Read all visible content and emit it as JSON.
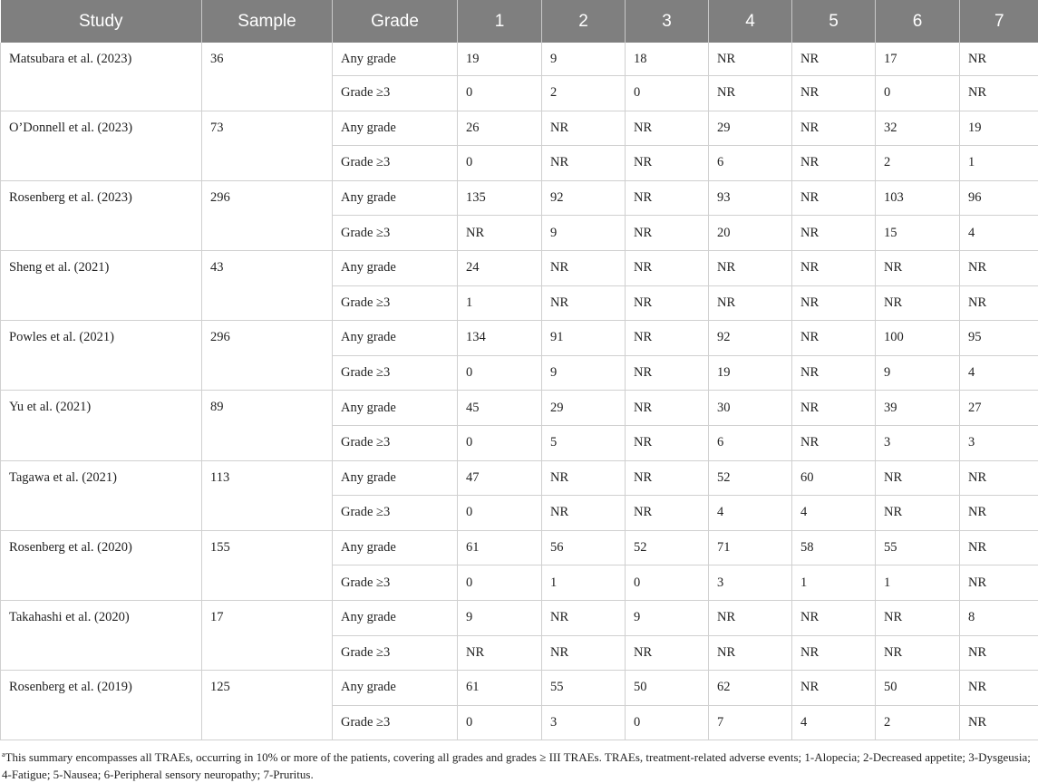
{
  "table": {
    "headers": [
      "Study",
      "Sample",
      "Grade",
      "1",
      "2",
      "3",
      "4",
      "5",
      "6",
      "7"
    ],
    "studies": [
      {
        "name": "Matsubara et al. (2023)",
        "sample": "36",
        "rows": [
          {
            "grade": "Any grade",
            "values": [
              "19",
              "9",
              "18",
              "NR",
              "NR",
              "17",
              "NR"
            ]
          },
          {
            "grade": "Grade ≥3",
            "values": [
              "0",
              "2",
              "0",
              "NR",
              "NR",
              "0",
              "NR"
            ]
          }
        ]
      },
      {
        "name": "O’Donnell et al. (2023)",
        "sample": "73",
        "rows": [
          {
            "grade": "Any grade",
            "values": [
              "26",
              "NR",
              "NR",
              "29",
              "NR",
              "32",
              "19"
            ]
          },
          {
            "grade": "Grade ≥3",
            "values": [
              "0",
              "NR",
              "NR",
              "6",
              "NR",
              "2",
              "1"
            ]
          }
        ]
      },
      {
        "name": "Rosenberg et al. (2023)",
        "sample": "296",
        "rows": [
          {
            "grade": "Any grade",
            "values": [
              "135",
              "92",
              "NR",
              "93",
              "NR",
              "103",
              "96"
            ]
          },
          {
            "grade": "Grade ≥3",
            "values": [
              "NR",
              "9",
              "NR",
              "20",
              "NR",
              "15",
              "4"
            ]
          }
        ]
      },
      {
        "name": "Sheng et al. (2021)",
        "sample": "43",
        "rows": [
          {
            "grade": "Any grade",
            "values": [
              "24",
              "NR",
              "NR",
              "NR",
              "NR",
              "NR",
              "NR"
            ]
          },
          {
            "grade": "Grade ≥3",
            "values": [
              "1",
              "NR",
              "NR",
              "NR",
              "NR",
              "NR",
              "NR"
            ]
          }
        ]
      },
      {
        "name": "Powles et al. (2021)",
        "sample": "296",
        "rows": [
          {
            "grade": "Any grade",
            "values": [
              "134",
              "91",
              "NR",
              "92",
              "NR",
              "100",
              "95"
            ]
          },
          {
            "grade": "Grade ≥3",
            "values": [
              "0",
              "9",
              "NR",
              "19",
              "NR",
              "9",
              "4"
            ]
          }
        ]
      },
      {
        "name": "Yu et al. (2021)",
        "sample": "89",
        "rows": [
          {
            "grade": "Any grade",
            "values": [
              "45",
              "29",
              "NR",
              "30",
              "NR",
              "39",
              "27"
            ]
          },
          {
            "grade": "Grade ≥3",
            "values": [
              "0",
              "5",
              "NR",
              "6",
              "NR",
              "3",
              "3"
            ]
          }
        ]
      },
      {
        "name": "Tagawa et al. (2021)",
        "sample": "113",
        "rows": [
          {
            "grade": "Any grade",
            "values": [
              "47",
              "NR",
              "NR",
              "52",
              "60",
              "NR",
              "NR"
            ]
          },
          {
            "grade": "Grade ≥3",
            "values": [
              "0",
              "NR",
              "NR",
              "4",
              "4",
              "NR",
              "NR"
            ]
          }
        ]
      },
      {
        "name": "Rosenberg et al. (2020)",
        "sample": "155",
        "rows": [
          {
            "grade": "Any grade",
            "values": [
              "61",
              "56",
              "52",
              "71",
              "58",
              "55",
              "NR"
            ]
          },
          {
            "grade": "Grade ≥3",
            "values": [
              "0",
              "1",
              "0",
              "3",
              "1",
              "1",
              "NR"
            ]
          }
        ]
      },
      {
        "name": "Takahashi et al. (2020)",
        "sample": "17",
        "rows": [
          {
            "grade": "Any grade",
            "values": [
              "9",
              "NR",
              "9",
              "NR",
              "NR",
              "NR",
              "8"
            ]
          },
          {
            "grade": "Grade ≥3",
            "values": [
              "NR",
              "NR",
              "NR",
              "NR",
              "NR",
              "NR",
              "NR"
            ]
          }
        ]
      },
      {
        "name": "Rosenberg et al. (2019)",
        "sample": "125",
        "rows": [
          {
            "grade": "Any grade",
            "values": [
              "61",
              "55",
              "50",
              "62",
              "NR",
              "50",
              "NR"
            ]
          },
          {
            "grade": "Grade ≥3",
            "values": [
              "0",
              "3",
              "0",
              "7",
              "4",
              "2",
              "NR"
            ]
          }
        ]
      }
    ]
  },
  "footnote": {
    "marker": "a",
    "text": "This summary encompasses all TRAEs, occurring in 10% or more of the patients, covering all grades and grades ≥ III TRAEs. TRAEs, treatment-related adverse events; 1-Alopecia; 2-Decreased appetite; 3-Dysgeusia; 4-Fatigue; 5-Nausea; 6-Peripheral sensory neuropathy; 7-Pruritus."
  },
  "colors": {
    "header_background": "#7f7f7f",
    "header_text": "#ffffff",
    "grid_line": "#d0d0d0",
    "body_text": "#222222"
  }
}
